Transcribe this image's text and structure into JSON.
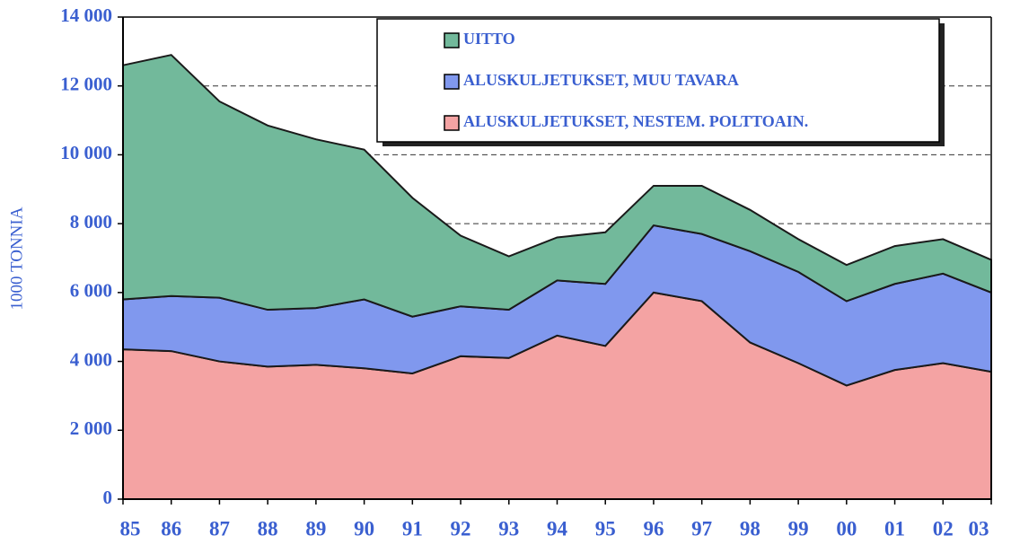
{
  "chart_data": {
    "type": "stacked_area",
    "y_label": "1000 TONNIA",
    "categories": [
      "85",
      "86",
      "87",
      "88",
      "89",
      "90",
      "91",
      "92",
      "93",
      "94",
      "95",
      "96",
      "97",
      "98",
      "99",
      "00",
      "01",
      "02",
      "03"
    ],
    "series": [
      {
        "name": "ALUSKULJETUKSET, NESTEM. POLTTOAIN.",
        "color": "#f4a3a3",
        "values": [
          4350,
          4300,
          4000,
          3850,
          3900,
          3800,
          3650,
          4150,
          4100,
          4750,
          4450,
          6000,
          5750,
          4550,
          3950,
          3300,
          3750,
          3950,
          3700
        ]
      },
      {
        "name": "ALUSKULJETUKSET, MUU TAVARA",
        "color": "#8098ee",
        "values": [
          1450,
          1600,
          1850,
          1650,
          1650,
          2000,
          1650,
          1450,
          1400,
          1600,
          1800,
          1950,
          1950,
          2650,
          2650,
          2450,
          2500,
          2600,
          2300
        ]
      },
      {
        "name": "UITTO",
        "color": "#72b99b",
        "values": [
          6800,
          7000,
          5700,
          5350,
          4900,
          4350,
          3450,
          2050,
          1550,
          1250,
          1500,
          1150,
          1400,
          1200,
          950,
          1050,
          1100,
          1000,
          950
        ]
      }
    ],
    "ylim": [
      0,
      14000
    ],
    "yticks": [
      0,
      {
        "value": 2000,
        "label": "2 000"
      },
      {
        "value": 4000,
        "label": "4 000"
      },
      {
        "value": 6000,
        "label": "6 000"
      },
      {
        "value": 8000,
        "label": "8 000"
      },
      {
        "value": 10000,
        "label": "10 000"
      },
      {
        "value": 12000,
        "label": "12 000"
      },
      {
        "value": 14000,
        "label": "14 000"
      }
    ],
    "grid": true
  }
}
